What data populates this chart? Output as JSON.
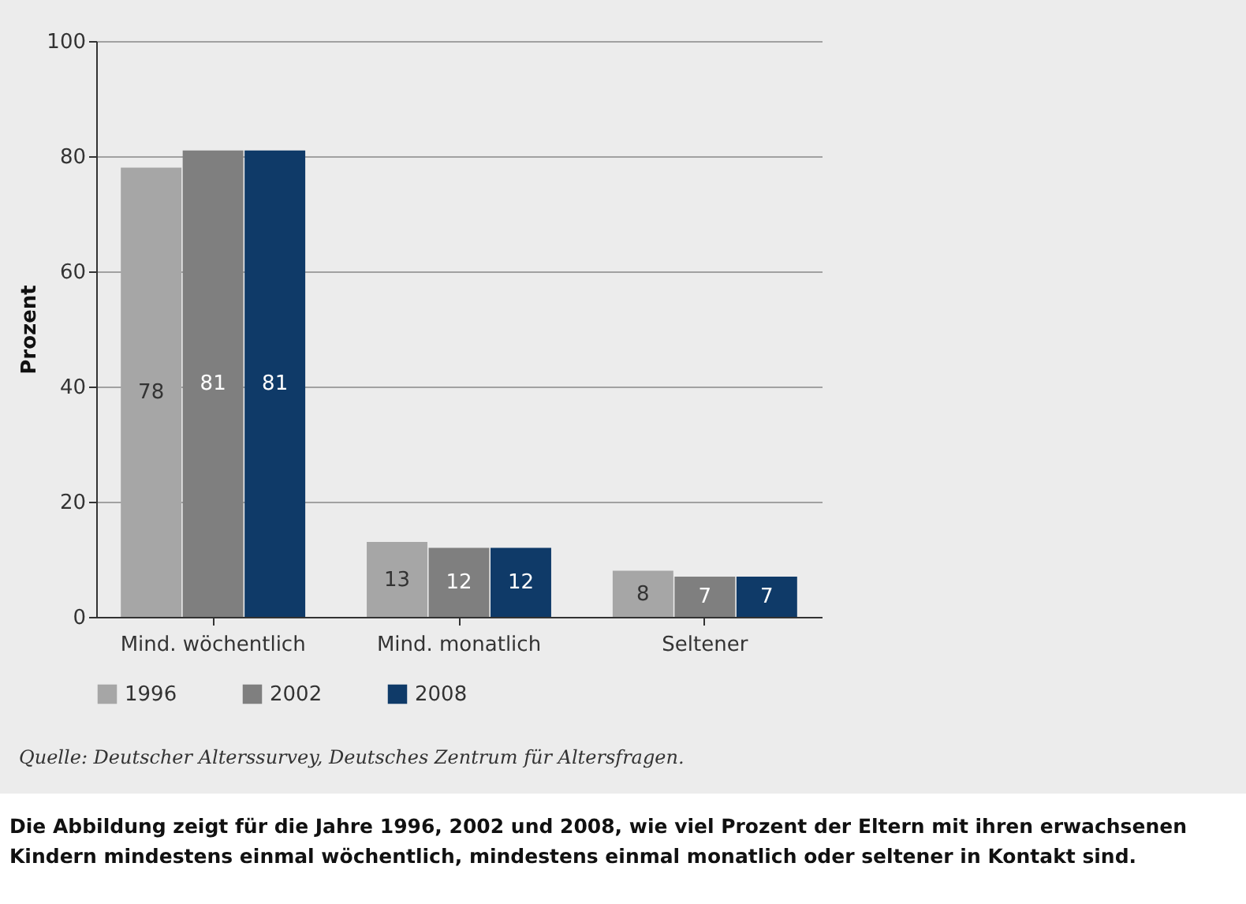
{
  "chart_data": {
    "type": "bar",
    "ylabel": "Prozent",
    "categories": [
      "Mind. wöchentlich",
      "Mind. monatlich",
      "Seltener"
    ],
    "series": [
      {
        "name": "1996",
        "color": "#a6a6a6",
        "values": [
          78,
          13,
          8
        ]
      },
      {
        "name": "2002",
        "color": "#7f7f7f",
        "values": [
          81,
          12,
          7
        ]
      },
      {
        "name": "2008",
        "color": "#0f3a68",
        "values": [
          81,
          12,
          7
        ]
      }
    ],
    "ylim": [
      0,
      100
    ],
    "yticks": [
      0,
      20,
      40,
      60,
      80,
      100
    ],
    "grid": "y",
    "legend": "bottom",
    "data_labels": true,
    "annotations": [
      "Quelle: Deutscher Alterssurvey, Deutsches Zentrum für Altersfragen.",
      "Die Abbildung zeigt für die Jahre 1996, 2002 und 2008, wie viel Prozent der Eltern mit ihren erwachsenen Kindern mindestens einmal wöchentlich, mindestens einmal monatlich oder seltener in Kontakt sind."
    ]
  }
}
